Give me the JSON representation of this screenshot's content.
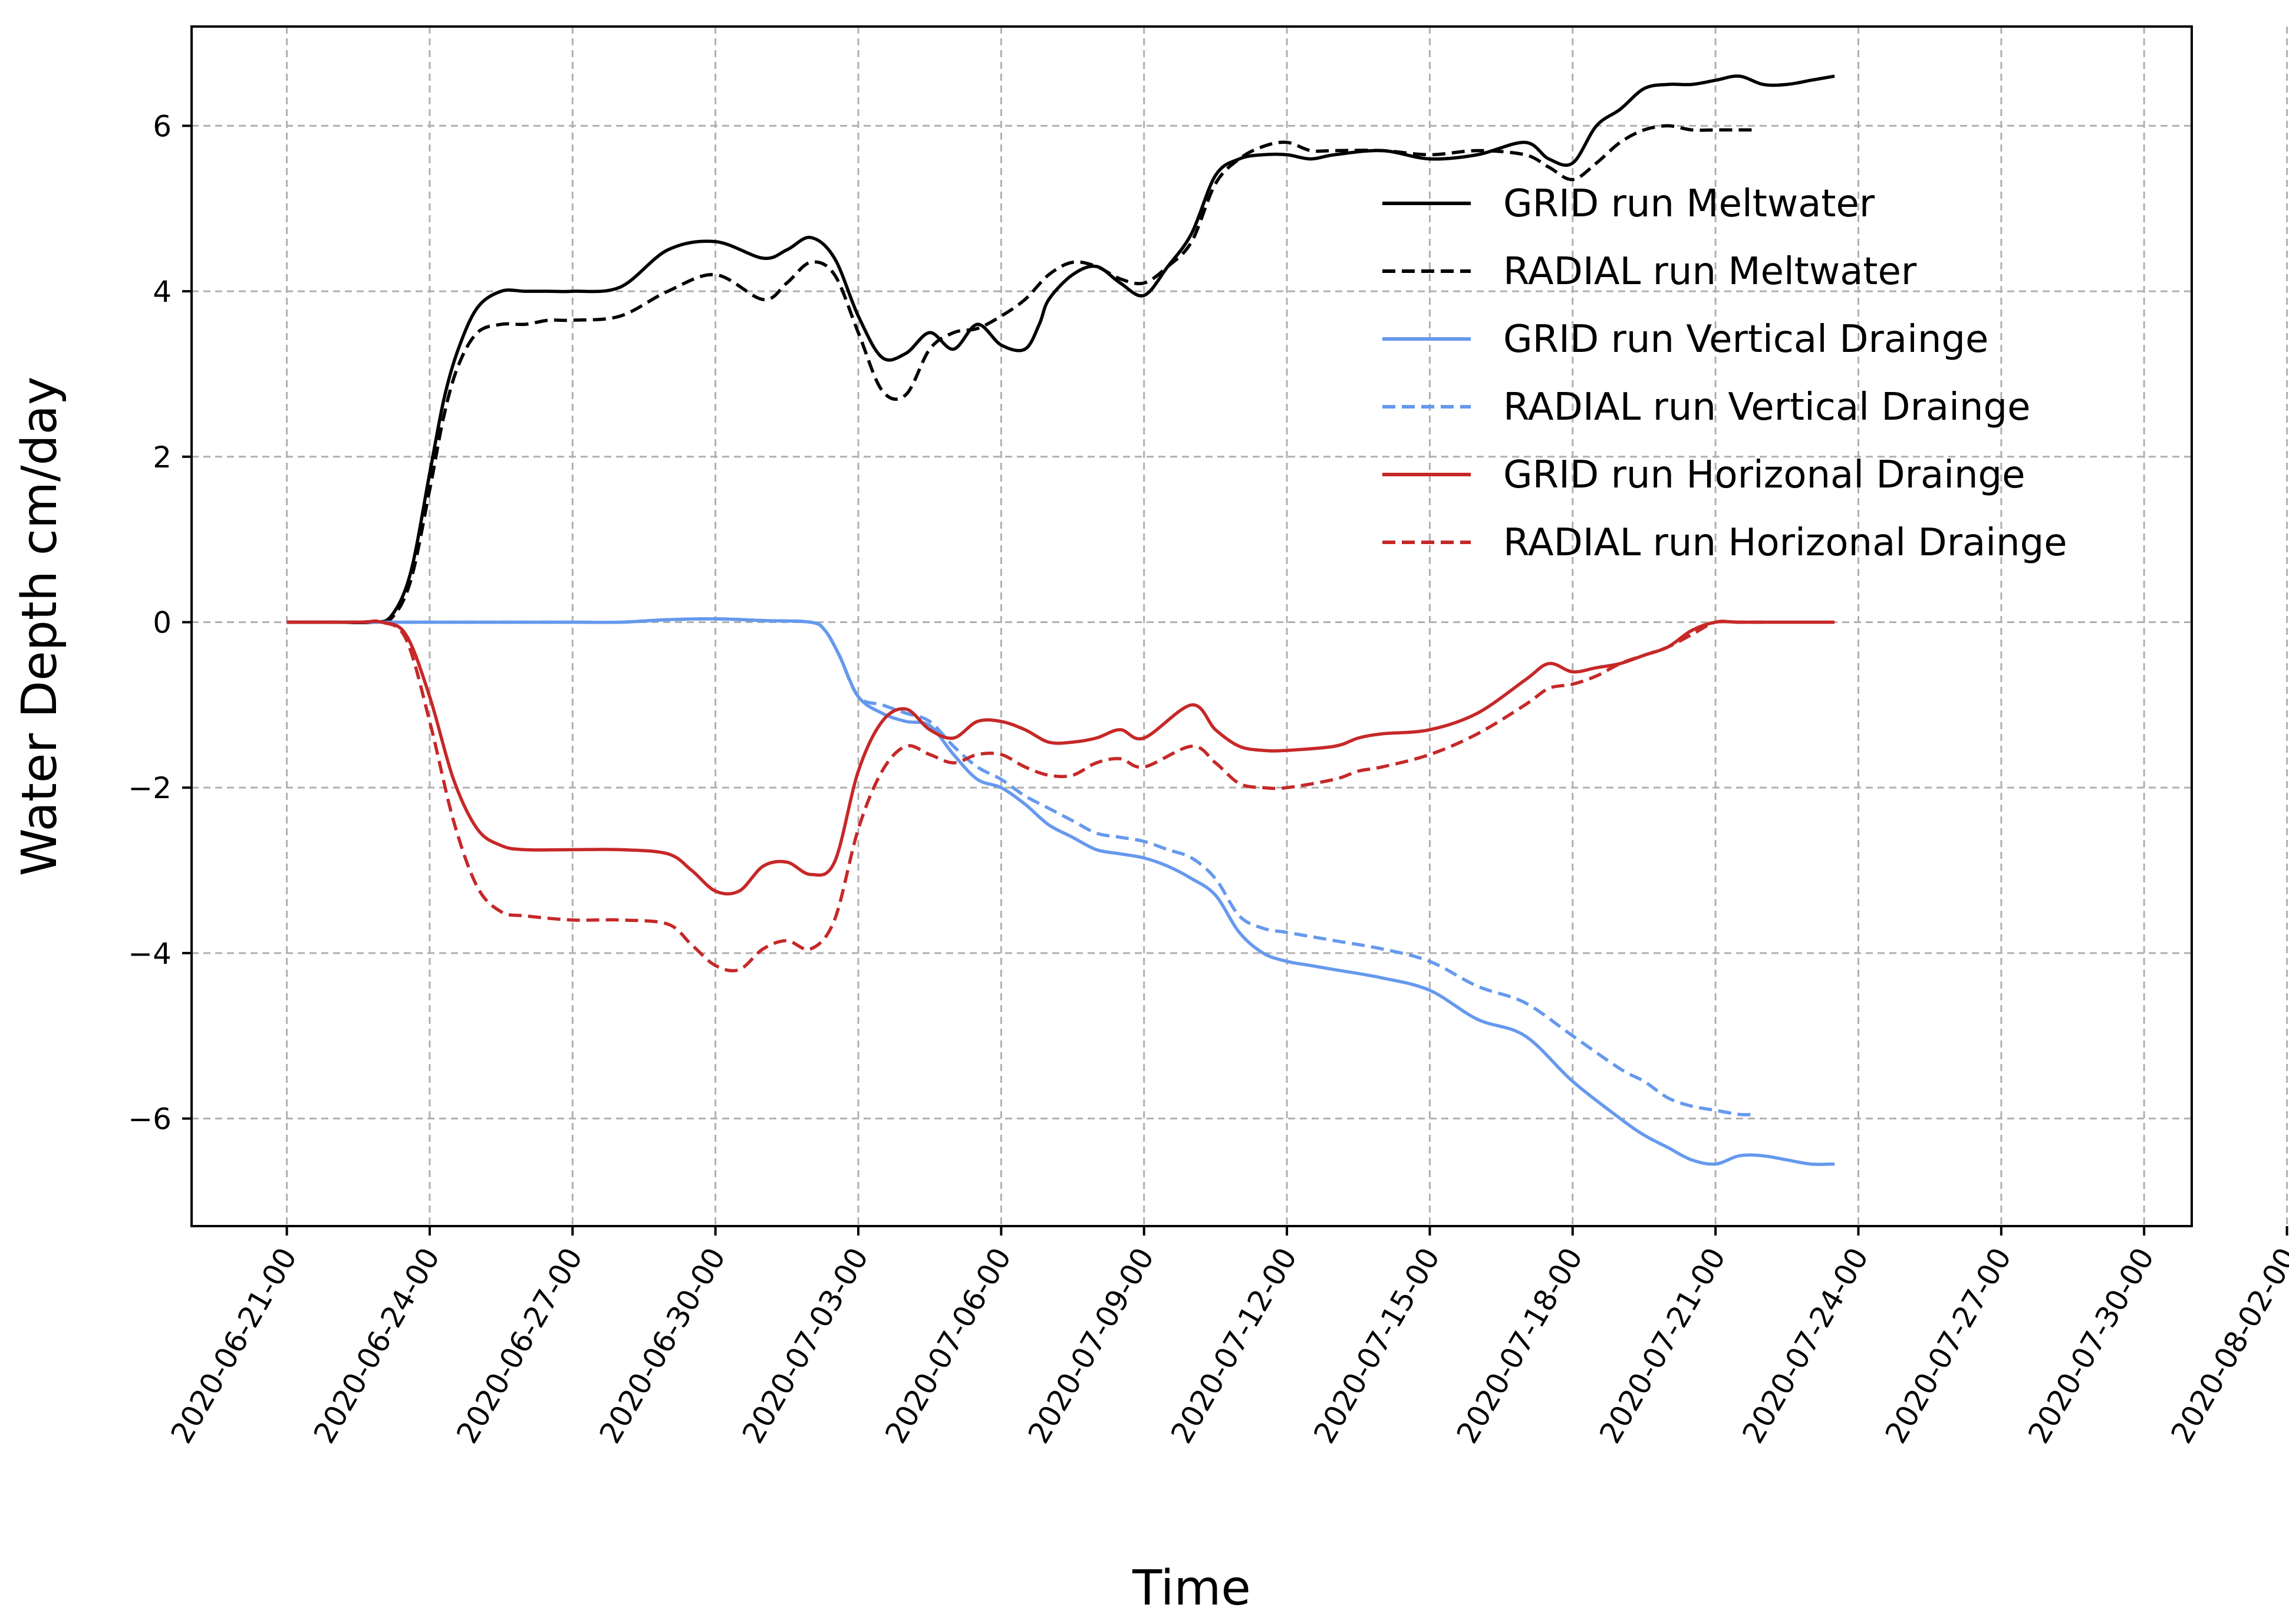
{
  "chart_data": {
    "type": "line",
    "title": "",
    "xlabel": "Time",
    "ylabel": "Water Depth cm/day",
    "xlim": [
      -2,
      40
    ],
    "ylim": [
      -7.3,
      7.2
    ],
    "grid": true,
    "legend_position": "top-right",
    "x_unit": "days since 2020-06-21",
    "x_ticks": [
      0,
      3,
      6,
      9,
      12,
      15,
      18,
      21,
      24,
      27,
      30,
      33,
      36,
      39,
      42
    ],
    "x_tick_labels": [
      "2020-06-21-00",
      "2020-06-24-00",
      "2020-06-27-00",
      "2020-06-30-00",
      "2020-07-03-00",
      "2020-07-06-00",
      "2020-07-09-00",
      "2020-07-12-00",
      "2020-07-15-00",
      "2020-07-18-00",
      "2020-07-21-00",
      "2020-07-24-00",
      "2020-07-27-00",
      "2020-07-30-00",
      "2020-08-02-00"
    ],
    "y_ticks": [
      -6,
      -4,
      -2,
      0,
      2,
      4,
      6
    ],
    "y_tick_labels": [
      "−6",
      "−4",
      "−2",
      "0",
      "2",
      "4",
      "6"
    ],
    "series": [
      {
        "name": "GRID run Meltwater",
        "color": "#000000",
        "dash": "solid",
        "x": [
          0,
          1,
          1.8,
          2.2,
          2.6,
          3,
          3.3,
          3.6,
          4,
          4.5,
          5,
          5.5,
          6,
          7,
          8,
          9,
          10,
          10.5,
          11,
          11.5,
          12,
          12.5,
          13,
          13.5,
          14,
          14.5,
          15,
          15.5,
          15.8,
          16,
          16.5,
          17,
          17.5,
          18,
          18.5,
          19,
          19.5,
          20,
          20.5,
          21,
          21.5,
          22,
          23,
          24,
          25,
          26,
          26.5,
          27,
          27.5,
          28,
          28.5,
          29,
          29.5,
          30,
          30.5,
          31,
          31.5,
          32,
          32.5
        ],
        "y": [
          0,
          0,
          0,
          0.08,
          0.6,
          1.8,
          2.7,
          3.3,
          3.8,
          4,
          4,
          4,
          4,
          4.05,
          4.5,
          4.6,
          4.4,
          4.5,
          4.65,
          4.4,
          3.7,
          3.2,
          3.25,
          3.5,
          3.3,
          3.6,
          3.35,
          3.3,
          3.6,
          3.9,
          4.2,
          4.3,
          4.1,
          3.95,
          4.3,
          4.7,
          5.4,
          5.6,
          5.65,
          5.65,
          5.6,
          5.65,
          5.7,
          5.6,
          5.65,
          5.8,
          5.6,
          5.55,
          6,
          6.2,
          6.45,
          6.5,
          6.5,
          6.55,
          6.6,
          6.5,
          6.5,
          6.55,
          6.6
        ]
      },
      {
        "name": "RADIAL run Meltwater",
        "color": "#000000",
        "dash": "dashed",
        "x": [
          0,
          1,
          1.8,
          2.2,
          2.6,
          3,
          3.3,
          3.6,
          4,
          4.5,
          5,
          5.5,
          6,
          7,
          8,
          9,
          10,
          10.5,
          11,
          11.5,
          12,
          12.5,
          13,
          13.5,
          14,
          14.5,
          15,
          15.5,
          16,
          16.5,
          17,
          17.5,
          18,
          18.5,
          19,
          19.5,
          20,
          20.5,
          21,
          21.5,
          22,
          23,
          24,
          25,
          26,
          26.5,
          27,
          27.5,
          28,
          28.5,
          29,
          29.5,
          30,
          30.5,
          30.8
        ],
        "y": [
          0,
          0,
          0,
          0.05,
          0.5,
          1.6,
          2.5,
          3.1,
          3.5,
          3.6,
          3.6,
          3.65,
          3.65,
          3.7,
          4,
          4.2,
          3.9,
          4.1,
          4.35,
          4.2,
          3.5,
          2.8,
          2.75,
          3.3,
          3.5,
          3.55,
          3.7,
          3.9,
          4.2,
          4.35,
          4.3,
          4.15,
          4.1,
          4.3,
          4.6,
          5.3,
          5.6,
          5.75,
          5.8,
          5.7,
          5.7,
          5.7,
          5.65,
          5.7,
          5.65,
          5.5,
          5.35,
          5.55,
          5.8,
          5.95,
          6,
          5.95,
          5.95,
          5.95,
          5.95
        ]
      },
      {
        "name": "GRID run Vertical Drainge",
        "color": "#6699ee",
        "dash": "solid",
        "x": [
          0,
          2,
          4,
          6,
          7,
          8,
          9,
          10,
          11,
          11.3,
          11.6,
          12,
          12.5,
          13,
          13.5,
          14,
          14.5,
          15,
          15.5,
          16,
          16.5,
          17,
          17.5,
          18,
          18.5,
          19,
          19.5,
          20,
          20.5,
          21,
          21.5,
          22,
          23,
          24,
          25,
          26,
          27,
          28,
          28.5,
          29,
          29.5,
          30,
          30.5,
          31,
          31.5,
          32,
          32.5
        ],
        "y": [
          0,
          0,
          0,
          0,
          0,
          0.03,
          0.04,
          0.02,
          0,
          -0.1,
          -0.4,
          -0.9,
          -1.1,
          -1.2,
          -1.25,
          -1.6,
          -1.9,
          -2.0,
          -2.2,
          -2.45,
          -2.6,
          -2.75,
          -2.8,
          -2.85,
          -2.95,
          -3.1,
          -3.3,
          -3.75,
          -4.0,
          -4.1,
          -4.15,
          -4.2,
          -4.3,
          -4.45,
          -4.8,
          -5.0,
          -5.55,
          -6.0,
          -6.2,
          -6.35,
          -6.5,
          -6.55,
          -6.45,
          -6.45,
          -6.5,
          -6.55,
          -6.55
        ]
      },
      {
        "name": "RADIAL run Vertical Drainge",
        "color": "#6699ee",
        "dash": "dashed",
        "x": [
          0,
          2,
          4,
          6,
          7,
          8,
          9,
          10,
          11,
          11.3,
          11.6,
          12,
          12.5,
          13,
          13.5,
          14,
          14.5,
          15,
          15.5,
          16,
          16.5,
          17,
          17.5,
          18,
          18.5,
          19,
          19.5,
          20,
          20.5,
          21,
          21.5,
          22,
          23,
          24,
          25,
          26,
          27,
          28,
          28.5,
          29,
          29.5,
          30,
          30.5,
          30.8
        ],
        "y": [
          0,
          0,
          0,
          0,
          0,
          0.03,
          0.04,
          0.02,
          0,
          -0.1,
          -0.4,
          -0.9,
          -1.0,
          -1.1,
          -1.2,
          -1.5,
          -1.75,
          -1.9,
          -2.1,
          -2.25,
          -2.4,
          -2.55,
          -2.6,
          -2.65,
          -2.75,
          -2.85,
          -3.1,
          -3.55,
          -3.7,
          -3.75,
          -3.8,
          -3.85,
          -3.95,
          -4.1,
          -4.4,
          -4.6,
          -5.0,
          -5.4,
          -5.55,
          -5.75,
          -5.85,
          -5.9,
          -5.95,
          -5.95
        ]
      },
      {
        "name": "GRID run Horizonal Drainge",
        "color": "#c62828",
        "dash": "solid",
        "x": [
          0,
          1.5,
          2,
          2.5,
          3,
          3.5,
          4,
          4.5,
          5,
          6,
          7,
          8,
          8.5,
          9,
          9.5,
          10,
          10.5,
          11,
          11.5,
          12,
          12.5,
          13,
          13.5,
          14,
          14.5,
          15,
          15.5,
          16,
          16.5,
          17,
          17.5,
          18,
          19,
          19.5,
          20,
          20.5,
          21,
          22,
          22.5,
          23,
          24,
          25,
          26,
          26.5,
          27,
          27.5,
          28,
          28.5,
          29,
          29.5,
          30,
          30.5,
          31,
          32,
          32.5
        ],
        "y": [
          0,
          0,
          0,
          -0.15,
          -0.9,
          -1.9,
          -2.5,
          -2.7,
          -2.75,
          -2.75,
          -2.75,
          -2.8,
          -3.0,
          -3.25,
          -3.25,
          -2.95,
          -2.9,
          -3.05,
          -2.9,
          -1.8,
          -1.2,
          -1.05,
          -1.3,
          -1.4,
          -1.2,
          -1.2,
          -1.3,
          -1.45,
          -1.45,
          -1.4,
          -1.3,
          -1.4,
          -1.0,
          -1.3,
          -1.5,
          -1.55,
          -1.55,
          -1.5,
          -1.4,
          -1.35,
          -1.3,
          -1.1,
          -0.7,
          -0.5,
          -0.6,
          -0.55,
          -0.5,
          -0.4,
          -0.3,
          -0.1,
          0,
          0,
          0,
          0,
          0
        ]
      },
      {
        "name": "RADIAL run Horizonal Drainge",
        "color": "#c62828",
        "dash": "dashed",
        "x": [
          0,
          1.5,
          2,
          2.5,
          3,
          3.5,
          4,
          4.5,
          5,
          6,
          7,
          8,
          8.5,
          9,
          9.5,
          10,
          10.5,
          11,
          11.5,
          12,
          12.5,
          13,
          13.5,
          14,
          14.5,
          15,
          15.5,
          16,
          16.5,
          17,
          17.5,
          18,
          19,
          19.5,
          20,
          20.5,
          21,
          22,
          22.5,
          23,
          24,
          25,
          26,
          26.5,
          27,
          27.5,
          28,
          28.5,
          29,
          29.5,
          30,
          30.5,
          31
        ],
        "y": [
          0,
          0,
          0,
          -0.2,
          -1.2,
          -2.4,
          -3.2,
          -3.5,
          -3.55,
          -3.6,
          -3.6,
          -3.65,
          -3.9,
          -4.15,
          -4.2,
          -3.95,
          -3.85,
          -3.95,
          -3.6,
          -2.5,
          -1.8,
          -1.5,
          -1.6,
          -1.7,
          -1.6,
          -1.6,
          -1.75,
          -1.85,
          -1.85,
          -1.7,
          -1.65,
          -1.75,
          -1.5,
          -1.7,
          -1.95,
          -2.0,
          -2.0,
          -1.9,
          -1.8,
          -1.75,
          -1.6,
          -1.35,
          -1.0,
          -0.8,
          -0.75,
          -0.65,
          -0.5,
          -0.4,
          -0.3,
          -0.15,
          0,
          0,
          0
        ]
      }
    ]
  }
}
